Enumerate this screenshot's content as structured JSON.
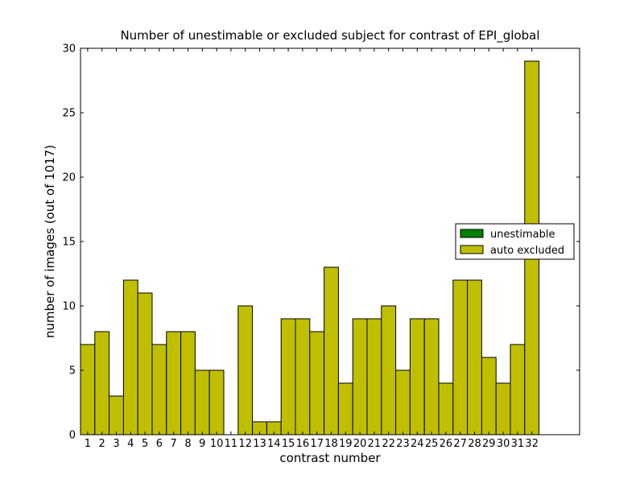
{
  "chart_data": {
    "type": "bar",
    "title": "Number of unestimable or excluded subject for contrast of EPI_global",
    "xlabel": "contrast number",
    "ylabel": "number of images (out of 1017)",
    "ylim": [
      0,
      30
    ],
    "yticks": [
      0,
      5,
      10,
      15,
      20,
      25,
      30
    ],
    "categories": [
      "1",
      "2",
      "3",
      "4",
      "5",
      "6",
      "7",
      "8",
      "9",
      "10",
      "11",
      "12",
      "13",
      "14",
      "15",
      "16",
      "17",
      "18",
      "19",
      "20",
      "21",
      "22",
      "23",
      "24",
      "25",
      "26",
      "27",
      "28",
      "29",
      "30",
      "31",
      "32"
    ],
    "series": [
      {
        "name": "unestimable",
        "color": "#008000",
        "values": [
          0,
          0,
          0,
          0,
          0,
          0,
          0,
          0,
          0,
          0,
          0,
          0,
          0,
          0,
          0,
          0,
          0,
          0,
          0,
          0,
          0,
          0,
          0,
          0,
          0,
          0,
          0,
          0,
          0,
          0,
          0,
          0
        ]
      },
      {
        "name": "auto excluded",
        "color": "#bfbf00",
        "values": [
          7,
          8,
          3,
          12,
          11,
          7,
          8,
          8,
          5,
          5,
          0,
          10,
          1,
          1,
          9,
          9,
          8,
          13,
          4,
          9,
          9,
          10,
          5,
          9,
          9,
          4,
          12,
          12,
          6,
          4,
          7,
          29
        ]
      }
    ],
    "stacked": true,
    "legend": "right",
    "grid": false
  }
}
